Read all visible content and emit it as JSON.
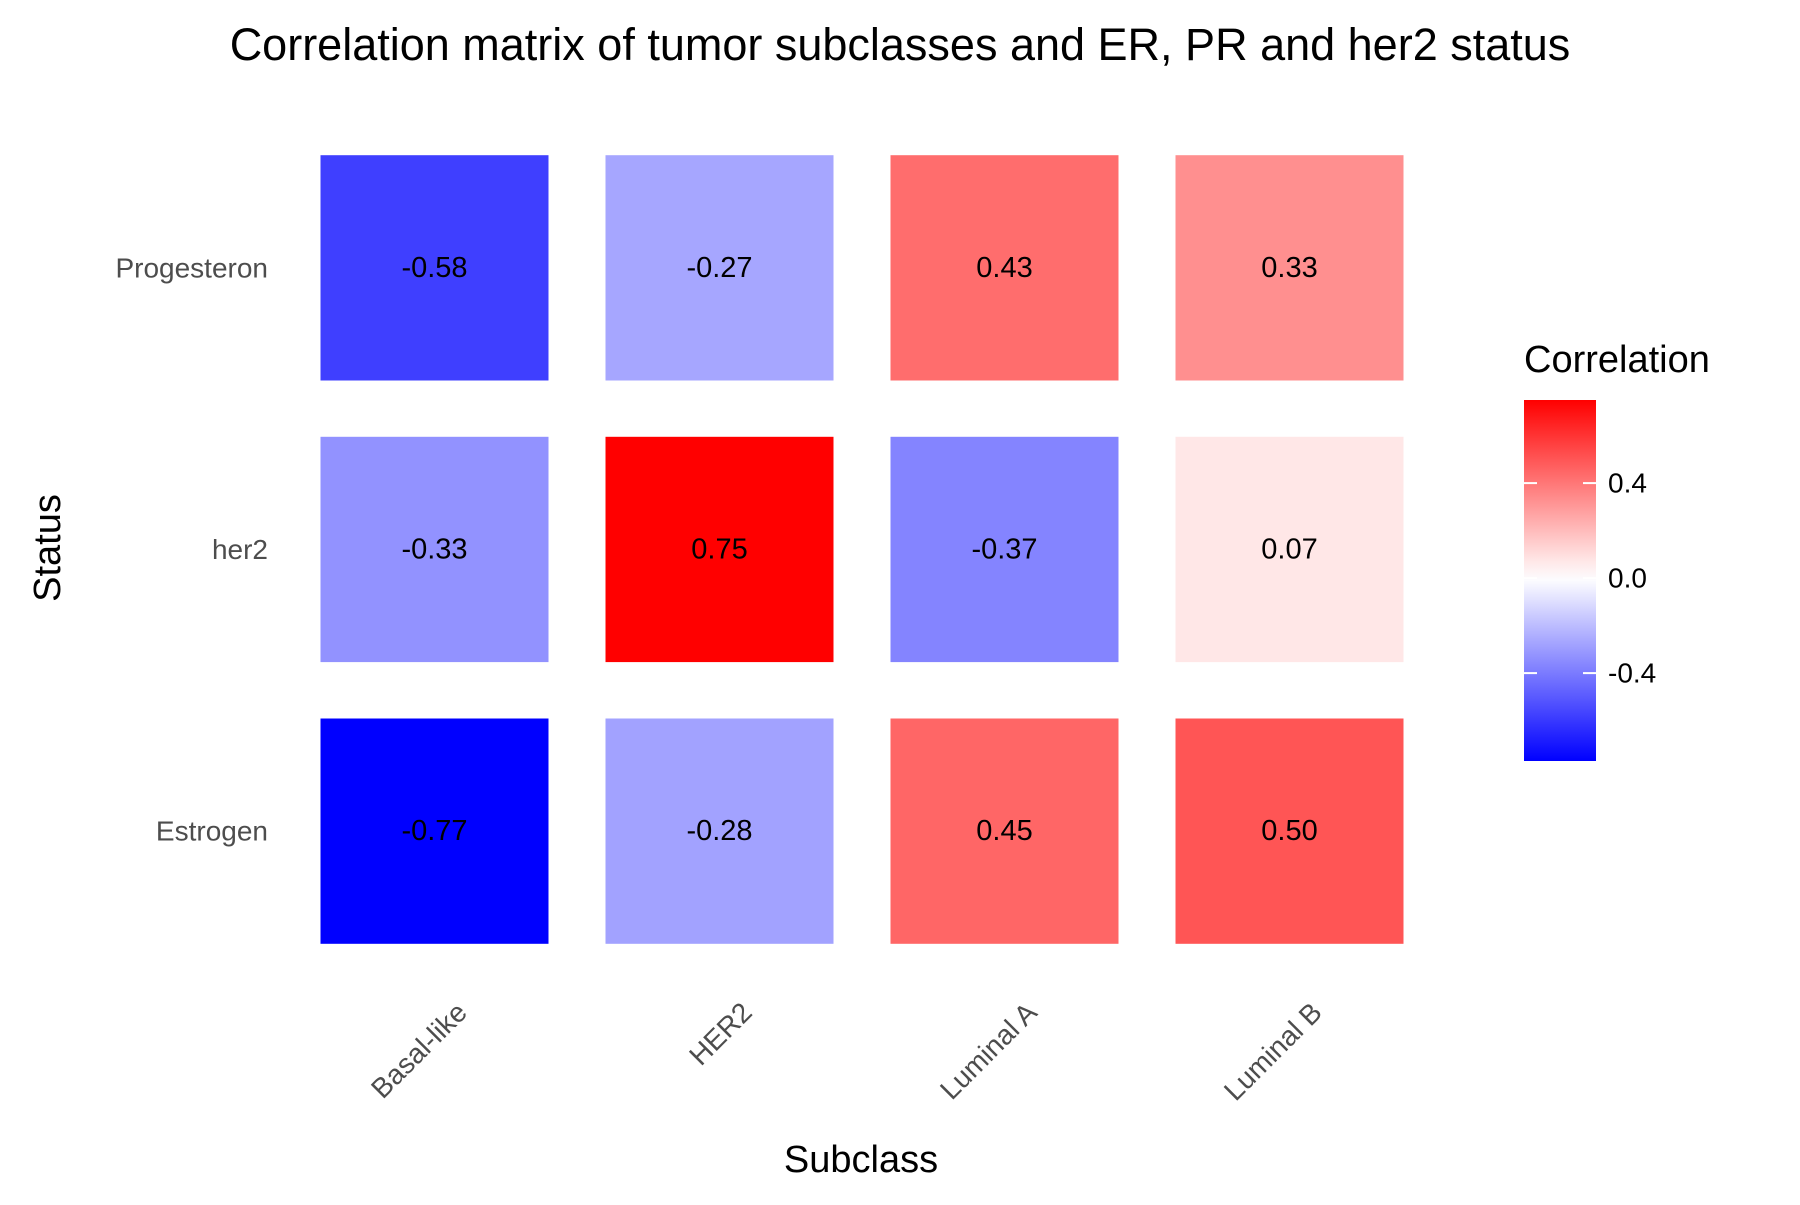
{
  "chart_data": {
    "type": "heatmap",
    "title": "Correlation matrix of tumor subclasses and ER, PR and her2 status",
    "xlabel": "Subclass",
    "ylabel": "Status",
    "x_categories": [
      "Basal-like",
      "HER2",
      "Luminal A",
      "Luminal B"
    ],
    "y_categories": [
      "Progesteron",
      "her2",
      "Estrogen"
    ],
    "values": [
      [
        -0.58,
        -0.27,
        0.43,
        0.33
      ],
      [
        -0.33,
        0.75,
        -0.37,
        0.07
      ],
      [
        -0.77,
        -0.28,
        0.45,
        0.5
      ]
    ],
    "value_labels": [
      [
        "-0.58",
        "-0.27",
        "0.43",
        "0.33"
      ],
      [
        "-0.33",
        "0.75",
        "-0.37",
        "0.07"
      ],
      [
        "-0.77",
        "-0.28",
        "0.45",
        "0.50"
      ]
    ],
    "legend": {
      "title": "Correlation",
      "placement": "right",
      "range": [
        -0.77,
        0.75
      ],
      "ticks": [
        0.4,
        0.0,
        -0.4
      ],
      "tick_labels": [
        "0.4",
        "0.0",
        "-0.4"
      ]
    },
    "colors": {
      "low": "#0000ff",
      "mid": "#ffffff",
      "high": "#ff0000"
    },
    "grid": false
  }
}
